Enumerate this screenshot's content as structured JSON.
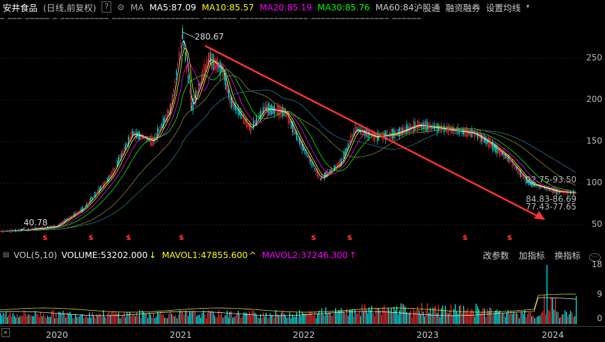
{
  "header": {
    "title": "安井食品",
    "period": "(日线,前复权)",
    "help": "?",
    "ma_label": "MA",
    "ma5": "MA5:87.09",
    "ma10": "MA10:85.57",
    "ma20": "MA20:85.19",
    "ma30": "MA30:85.76",
    "ma60": "MA60:84",
    "hgt": "沪股通",
    "rzrq": "融资融券",
    "settings": "设置均线"
  },
  "colors": {
    "ma5": "#ffffff",
    "ma10": "#ffff00",
    "ma20": "#ff00ff",
    "ma30": "#00ff00",
    "ma60": "#cccccc",
    "up": "#ff3333",
    "down": "#00ffff",
    "trend": "#ff3333"
  },
  "price_chart": {
    "y_ticks": [
      "250",
      "200",
      "150",
      "100",
      "50"
    ],
    "high_label": "280.67",
    "low_label": "40.78",
    "pred_labels": [
      "92.75-93.50",
      "84.83-86.69",
      "77.43-77.65"
    ]
  },
  "volume": {
    "label": "VOL(5,10)",
    "volume": "VOLUME:53202.000",
    "mavol1": "MAVOL1:47855.600",
    "mavol2": "MAVOL2:37246.300",
    "change_params": "改参数",
    "add_indicator": "加指标",
    "switch_indicator": "换指标",
    "y_ticks": [
      "18",
      "9",
      "0"
    ]
  },
  "x_axis": [
    "2020",
    "2021",
    "2022",
    "2023",
    "2024"
  ]
}
